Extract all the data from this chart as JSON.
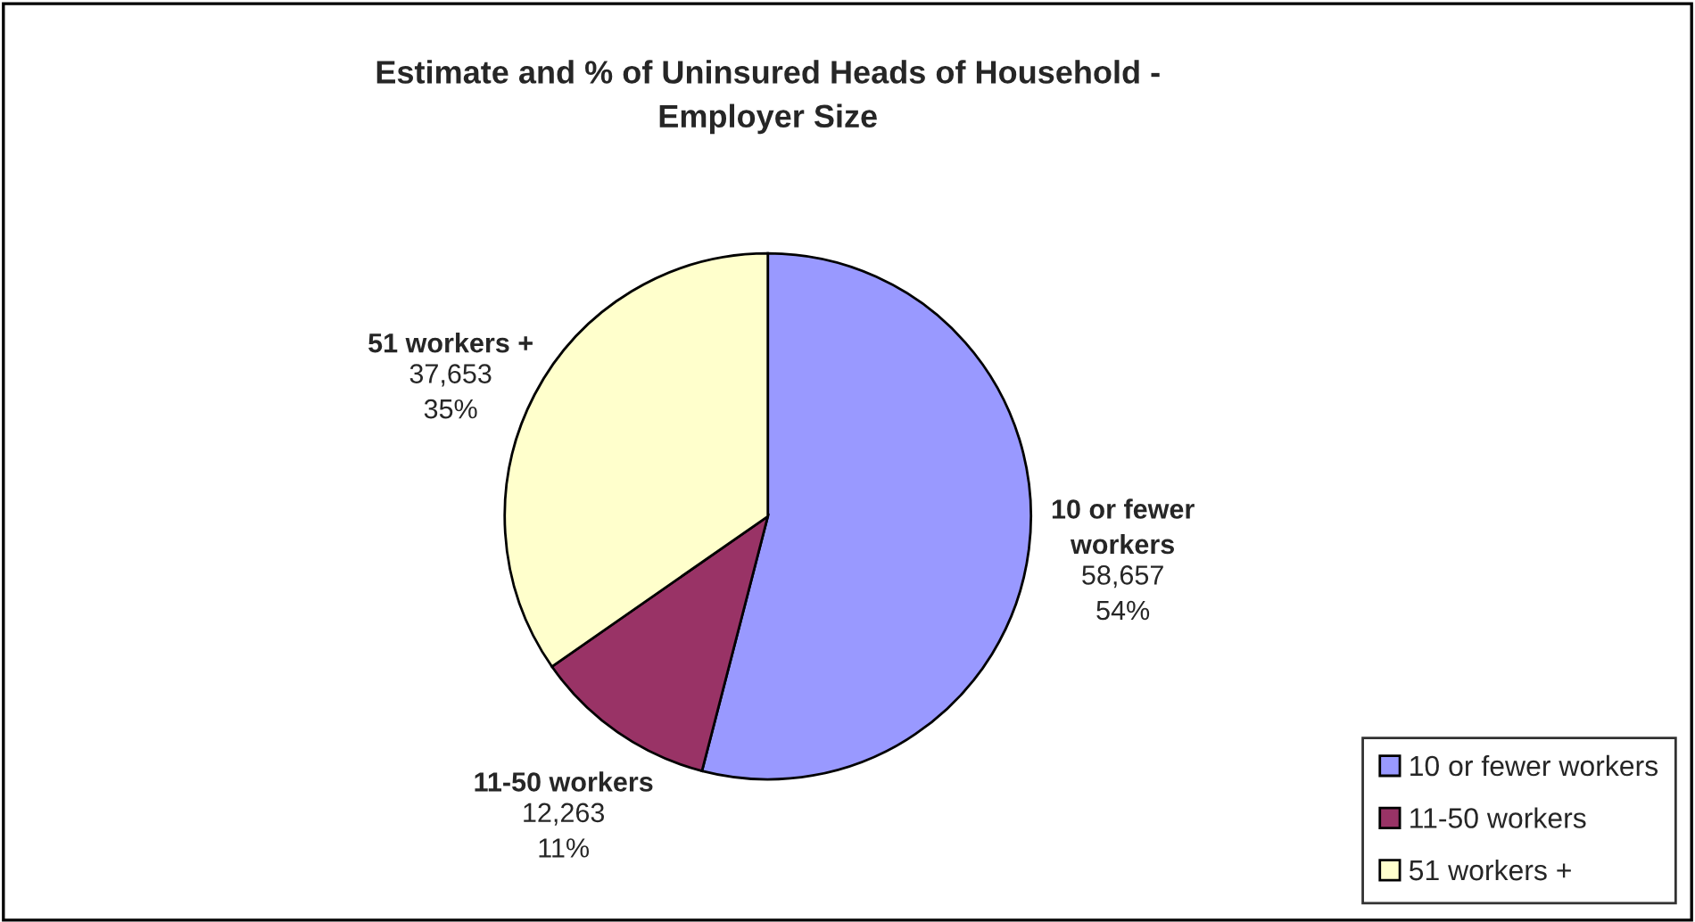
{
  "chart_data": {
    "type": "pie",
    "title": "Estimate and % of Uninsured Heads of Household - Employer Size",
    "categories": [
      "10 or fewer workers",
      "11-50 workers",
      "51 workers +"
    ],
    "values": [
      58657,
      12263,
      37653
    ],
    "value_labels": [
      "58,657\n54%",
      "12,263\n11%",
      "37,653\n35%"
    ],
    "colors": [
      "#9999ff",
      "#993366",
      "#ffffcc"
    ],
    "legend": "bottom right"
  }
}
